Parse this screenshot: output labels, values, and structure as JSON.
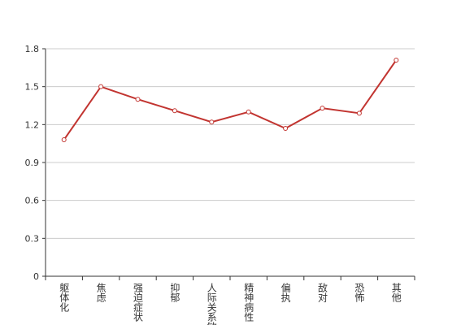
{
  "chart_data": {
    "type": "line",
    "categories": [
      "躯体化",
      "焦虑",
      "强迫症状",
      "抑郁",
      "人际关系敏感",
      "精神病性",
      "偏执",
      "敌对",
      "恐怖",
      "其他"
    ],
    "values": [
      1.08,
      1.5,
      1.4,
      1.31,
      1.22,
      1.3,
      1.17,
      1.33,
      1.29,
      1.71
    ],
    "color": "#c23531",
    "ylim": [
      0,
      1.8
    ],
    "yticks": [
      0,
      0.3,
      0.6,
      0.9,
      1.2,
      1.5,
      1.8
    ],
    "grid": true
  }
}
